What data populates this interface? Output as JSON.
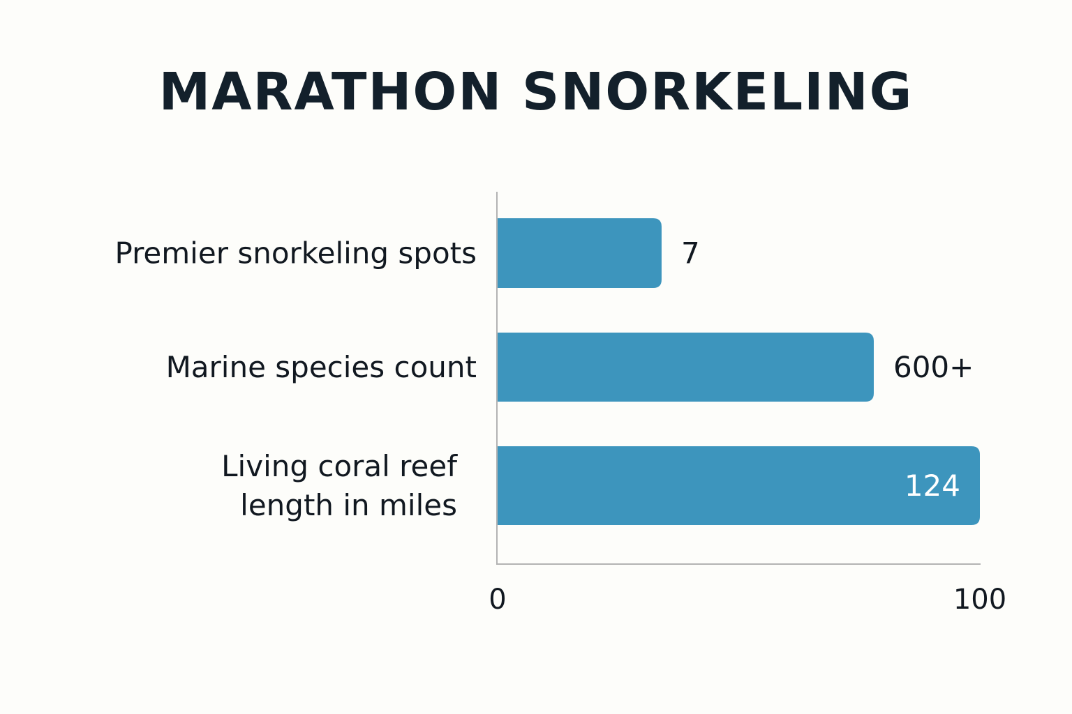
{
  "chart_data": {
    "type": "bar",
    "orientation": "horizontal",
    "title": "MARATHON SNORKELING",
    "categories": [
      [
        "Premier snorkeling spots"
      ],
      [
        "Marine species count"
      ],
      [
        "Living coral reef",
        "length in miles"
      ]
    ],
    "values": [
      34,
      78,
      100
    ],
    "value_labels": [
      "7",
      "600+",
      "124"
    ],
    "x_ticks": [
      "0",
      "100"
    ],
    "xlim": [
      0,
      100
    ],
    "bar_color": "#3d95bd",
    "grid": false,
    "legend": "none"
  }
}
